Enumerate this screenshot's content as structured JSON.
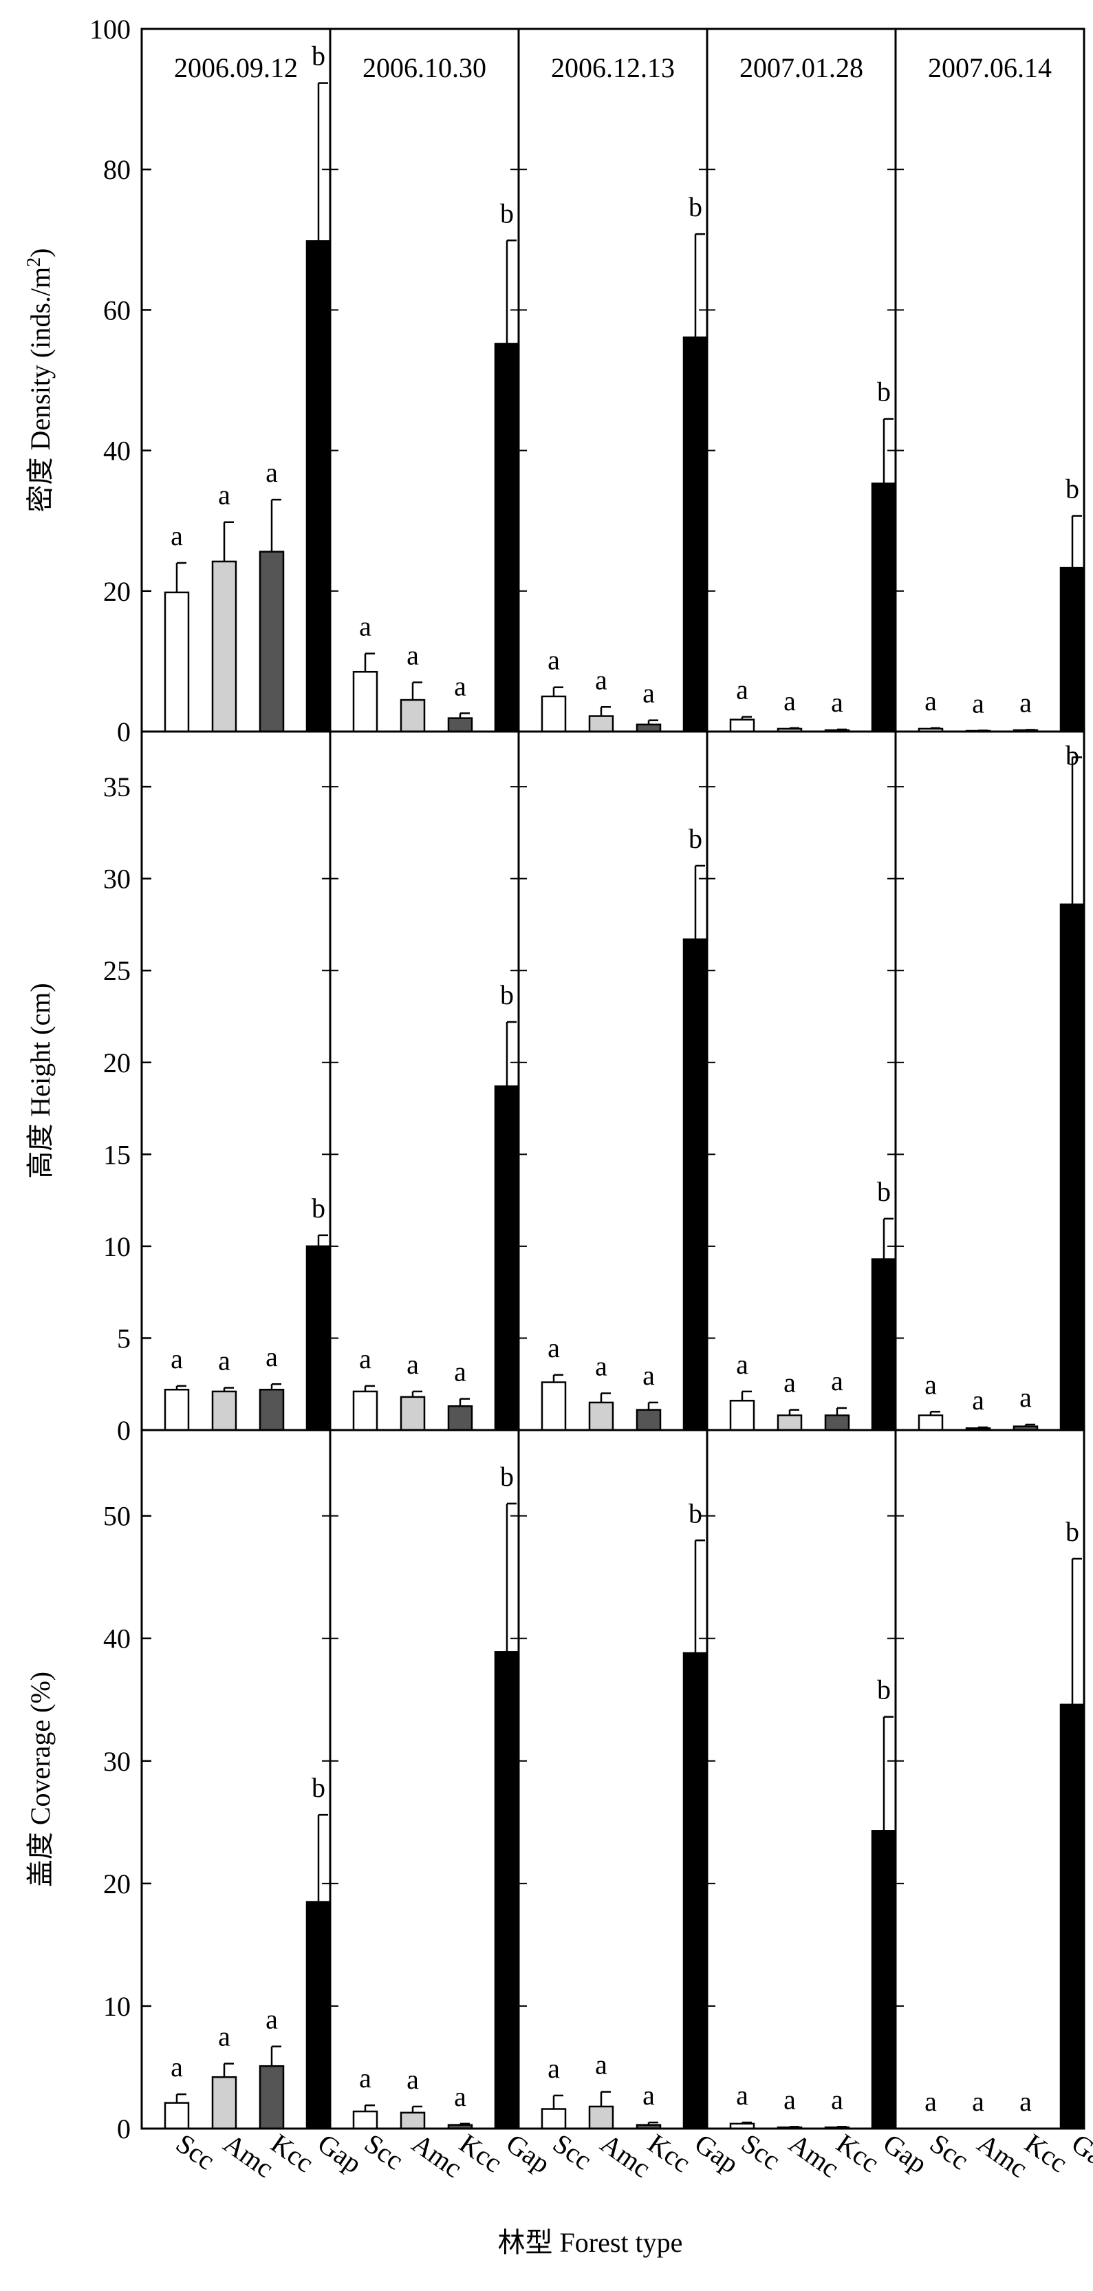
{
  "figure": {
    "xlabel": "林型  Forest type",
    "forest_types": [
      "Scc",
      "Amc",
      "Kcc",
      "Gap"
    ],
    "bar_colors": {
      "Scc": "#ffffff",
      "Amc": "#d0d0d0",
      "Kcc": "#555555",
      "Gap": "#000000"
    }
  },
  "chart_data": [
    {
      "type": "bar",
      "title": "密度  Density (inds./m²)",
      "ylabel_cn": "密度",
      "ylabel_en": "Density (inds./m",
      "ylabel_sup": "2",
      "ylabel_end": ")",
      "ylim": [
        0,
        100
      ],
      "yticks": [
        0,
        20,
        40,
        60,
        80,
        100
      ],
      "ytick_labels": [
        "0",
        "20",
        "40",
        "60",
        "80",
        "100"
      ],
      "categories": [
        "Scc",
        "Amc",
        "Kcc",
        "Gap"
      ],
      "grid": false,
      "panels": [
        {
          "date": "2006.09.12",
          "values": [
            19.8,
            24.2,
            25.6,
            69.8
          ],
          "errors": [
            4.2,
            5.6,
            7.4,
            22.5
          ],
          "letters": [
            "a",
            "a",
            "a",
            "b"
          ]
        },
        {
          "date": "2006.10.30",
          "values": [
            8.5,
            4.5,
            1.9,
            55.2
          ],
          "errors": [
            2.6,
            2.5,
            0.7,
            14.7
          ],
          "letters": [
            "a",
            "a",
            "a",
            "b"
          ]
        },
        {
          "date": "2006.12.13",
          "values": [
            5.0,
            2.2,
            1.0,
            56.1
          ],
          "errors": [
            1.3,
            1.3,
            0.6,
            14.7
          ],
          "letters": [
            "a",
            "a",
            "a",
            "b"
          ]
        },
        {
          "date": "2007.01.28",
          "values": [
            1.7,
            0.4,
            0.2,
            35.3
          ],
          "errors": [
            0.4,
            0.1,
            0.1,
            9.2
          ],
          "letters": [
            "a",
            "a",
            "a",
            "b"
          ]
        },
        {
          "date": "2007.06.14",
          "values": [
            0.4,
            0.1,
            0.2,
            23.3
          ],
          "errors": [
            0.1,
            0.05,
            0.05,
            7.4
          ],
          "letters": [
            "a",
            "a",
            "a",
            "b"
          ]
        }
      ]
    },
    {
      "type": "bar",
      "title": "高度  Height (cm)",
      "ylabel_cn": "高度",
      "ylabel_en": "Height (cm)",
      "ylim": [
        0,
        38
      ],
      "yticks": [
        0,
        5,
        10,
        15,
        20,
        25,
        30,
        35
      ],
      "ytick_labels": [
        "0",
        "5",
        "10",
        "15",
        "20",
        "25",
        "30",
        "35"
      ],
      "categories": [
        "Scc",
        "Amc",
        "Kcc",
        "Gap"
      ],
      "grid": false,
      "panels": [
        {
          "values": [
            2.2,
            2.1,
            2.2,
            10.0
          ],
          "errors": [
            0.2,
            0.2,
            0.3,
            0.6
          ],
          "letters": [
            "a",
            "a",
            "a",
            "b"
          ]
        },
        {
          "values": [
            2.1,
            1.8,
            1.3,
            18.7
          ],
          "errors": [
            0.3,
            0.3,
            0.4,
            3.5
          ],
          "letters": [
            "a",
            "a",
            "a",
            "b"
          ]
        },
        {
          "values": [
            2.6,
            1.5,
            1.1,
            26.7
          ],
          "errors": [
            0.4,
            0.5,
            0.4,
            4.0
          ],
          "letters": [
            "a",
            "a",
            "a",
            "b"
          ]
        },
        {
          "values": [
            1.6,
            0.8,
            0.8,
            9.3
          ],
          "errors": [
            0.5,
            0.3,
            0.4,
            2.2
          ],
          "letters": [
            "a",
            "a",
            "a",
            "b"
          ]
        },
        {
          "values": [
            0.8,
            0.1,
            0.2,
            28.6
          ],
          "errors": [
            0.2,
            0.05,
            0.1,
            8.0
          ],
          "letters": [
            "a",
            "a",
            "a",
            "b"
          ]
        }
      ]
    },
    {
      "type": "bar",
      "title": "盖度  Coverage (%)",
      "ylabel_cn": "盖度",
      "ylabel_en": "Coverage (%)",
      "ylim": [
        0,
        57
      ],
      "yticks": [
        0,
        10,
        20,
        30,
        40,
        50
      ],
      "ytick_labels": [
        "0",
        "10",
        "20",
        "30",
        "40",
        "50"
      ],
      "categories": [
        "Scc",
        "Amc",
        "Kcc",
        "Gap"
      ],
      "grid": false,
      "panels": [
        {
          "values": [
            2.1,
            4.2,
            5.1,
            18.5
          ],
          "errors": [
            0.7,
            1.1,
            1.6,
            7.1
          ],
          "letters": [
            "a",
            "a",
            "a",
            "b"
          ]
        },
        {
          "values": [
            1.4,
            1.3,
            0.3,
            38.9
          ],
          "errors": [
            0.5,
            0.5,
            0.1,
            12.1
          ],
          "letters": [
            "a",
            "a",
            "a",
            "b"
          ]
        },
        {
          "values": [
            1.6,
            1.8,
            0.3,
            38.8
          ],
          "errors": [
            1.1,
            1.2,
            0.2,
            9.2
          ],
          "letters": [
            "a",
            "a",
            "a",
            "b"
          ]
        },
        {
          "values": [
            0.4,
            0.1,
            0.1,
            24.3
          ],
          "errors": [
            0.1,
            0.05,
            0.05,
            9.3
          ],
          "letters": [
            "a",
            "a",
            "a",
            "b"
          ]
        },
        {
          "values": [
            0,
            0,
            0,
            34.6
          ],
          "errors": [
            0,
            0,
            0,
            11.9
          ],
          "letters": [
            "a",
            "a",
            "a",
            "b"
          ]
        }
      ]
    }
  ]
}
